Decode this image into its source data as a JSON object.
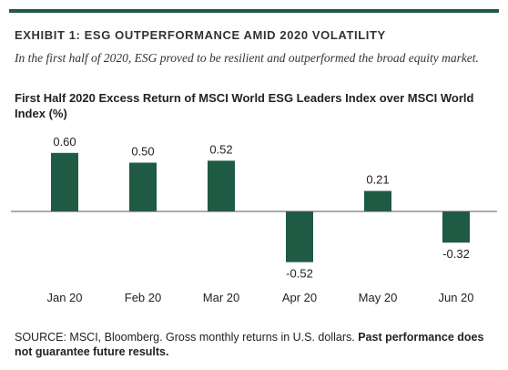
{
  "header": {
    "exhibit_title": "EXHIBIT 1: ESG OUTPERFORMANCE AMID 2020 VOLATILITY",
    "subtitle": "In the first half of 2020, ESG proved to be resilient and outperformed the broad equity market."
  },
  "chart_data": {
    "type": "bar",
    "title": "First Half 2020 Excess Return of MSCI World ESG Leaders Index over MSCI World Index (%)",
    "categories": [
      "Jan 20",
      "Feb 20",
      "Mar 20",
      "Apr 20",
      "May 20",
      "Jun 20"
    ],
    "values": [
      0.6,
      0.5,
      0.52,
      -0.52,
      0.21,
      -0.32
    ],
    "value_labels": [
      "0.60",
      "0.50",
      "0.52",
      "-0.52",
      "0.21",
      "-0.32"
    ],
    "xlabel": "",
    "ylabel": "",
    "grid": false,
    "legend": "none",
    "bar_color": "#1f5a45",
    "axis_color": "#555555"
  },
  "footer": {
    "source_text": "SOURCE: MSCI, Bloomberg. Gross monthly returns in U.S. dollars. ",
    "source_bold": "Past performance does not guarantee future results."
  },
  "colors": {
    "accent": "#1f5a45"
  }
}
